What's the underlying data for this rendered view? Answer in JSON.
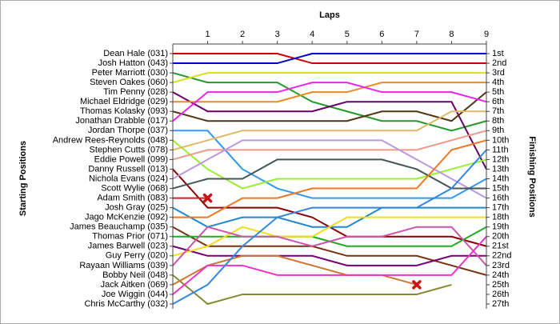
{
  "chart_data": {
    "type": "line",
    "xlabel": "Laps",
    "ylabel_left": "Starting Positions",
    "ylabel_right": "Finishing Positions",
    "x": [
      0,
      1,
      2,
      3,
      4,
      5,
      6,
      7,
      8,
      9
    ],
    "xlim": [
      0,
      9
    ],
    "xticks": [
      1,
      2,
      3,
      4,
      5,
      6,
      7,
      8,
      9
    ],
    "ylim": [
      1,
      27
    ],
    "finishing_labels": [
      "1st",
      "2nd",
      "3rd",
      "4th",
      "5th",
      "6th",
      "7th",
      "8th",
      "9th",
      "10th",
      "11th",
      "12th",
      "13th",
      "14th",
      "15th",
      "16th",
      "17th",
      "18th",
      "19th",
      "20th",
      "21st",
      "22nd",
      "23rd",
      "24th",
      "25th",
      "26th",
      "27th"
    ],
    "series": [
      {
        "name": "Dean Hale (031)",
        "color": "#cc0000",
        "values": [
          1,
          1,
          1,
          1,
          2,
          2,
          2,
          2,
          2,
          2
        ]
      },
      {
        "name": "Josh Hatton (043)",
        "color": "#0000cc",
        "values": [
          2,
          2,
          2,
          2,
          1,
          1,
          1,
          1,
          1,
          1
        ]
      },
      {
        "name": "Peter Marriott (030)",
        "color": "#22992a",
        "values": [
          3,
          4,
          4,
          4,
          6,
          7,
          8,
          8,
          9,
          8
        ]
      },
      {
        "name": "Steven Oakes (060)",
        "color": "#dddd22",
        "values": [
          4,
          3,
          3,
          3,
          3,
          3,
          3,
          3,
          3,
          3
        ]
      },
      {
        "name": "Tim Penny (028)",
        "color": "#660066",
        "values": [
          5,
          7,
          7,
          7,
          7,
          6,
          6,
          6,
          6,
          13
        ]
      },
      {
        "name": "Michael Eldridge (029)",
        "color": "#ee8822",
        "values": [
          6,
          6,
          6,
          6,
          5,
          5,
          4,
          4,
          4,
          4
        ]
      },
      {
        "name": "Thomas Kolasky (093)",
        "color": "#553311",
        "values": [
          7,
          8,
          8,
          8,
          8,
          8,
          7,
          7,
          8,
          5
        ]
      },
      {
        "name": "Jonathan Drabble (017)",
        "color": "#ee22ee",
        "values": [
          8,
          5,
          5,
          5,
          4,
          4,
          5,
          5,
          5,
          6
        ]
      },
      {
        "name": "Jordan Thorpe (037)",
        "color": "#3399ee",
        "values": [
          9,
          9,
          13,
          15,
          16,
          16,
          16,
          16,
          16,
          14
        ]
      },
      {
        "name": "Andrew Rees-Reynolds (048)",
        "color": "#99ee33",
        "values": [
          10,
          13,
          15,
          14,
          14,
          14,
          14,
          14,
          13,
          12
        ]
      },
      {
        "name": "Stephen Cutts (078)",
        "color": "#ddbb66",
        "values": [
          11,
          10,
          9,
          9,
          9,
          9,
          9,
          9,
          7,
          7
        ]
      },
      {
        "name": "Eddie Powell (099)",
        "color": "#ee9988",
        "values": [
          12,
          11,
          11,
          11,
          11,
          11,
          11,
          11,
          10,
          9
        ]
      },
      {
        "name": "Danny Russell (013)",
        "color": "#880000",
        "values": [
          13,
          17,
          17,
          17,
          18,
          20,
          20,
          20,
          20,
          21
        ]
      },
      {
        "name": "Nichola Evans (024)",
        "color": "#bb99dd",
        "values": [
          14,
          12,
          10,
          10,
          10,
          10,
          10,
          12,
          14,
          16
        ]
      },
      {
        "name": "Scott Wylie (068)",
        "color": "#445555",
        "values": [
          15,
          14,
          14,
          12,
          12,
          12,
          12,
          13,
          15,
          15
        ]
      },
      {
        "name": "Adam Smith (083)",
        "color": "#cc2222",
        "retired": true,
        "values": [
          16,
          16,
          null,
          null,
          null,
          null,
          null,
          null,
          null,
          null
        ]
      },
      {
        "name": "Josh Gray (025)",
        "color": "#2288cc",
        "values": [
          17,
          19,
          18,
          18,
          19,
          19,
          17,
          17,
          17,
          17
        ]
      },
      {
        "name": "Jago McKenzie (092)",
        "color": "#ee7722",
        "values": [
          18,
          18,
          16,
          16,
          15,
          15,
          15,
          15,
          11,
          10
        ]
      },
      {
        "name": "James Beauchamp (035)",
        "color": "#773311",
        "values": [
          19,
          21,
          21,
          21,
          21,
          22,
          22,
          22,
          23,
          24
        ]
      },
      {
        "name": "Thomas Prior (071)",
        "color": "#22aa22",
        "values": [
          20,
          20,
          20,
          20,
          20,
          21,
          21,
          21,
          21,
          19
        ]
      },
      {
        "name": "James Barwell (023)",
        "color": "#770077",
        "values": [
          21,
          22,
          22,
          22,
          22,
          23,
          23,
          23,
          22,
          22
        ]
      },
      {
        "name": "Guy Perry (020)",
        "color": "#eedd22",
        "values": [
          22,
          21,
          19,
          20,
          20,
          18,
          18,
          18,
          18,
          18
        ]
      },
      {
        "name": "Rayaan Williams (039)",
        "color": "#cc55aa",
        "values": [
          23,
          19,
          20,
          20,
          21,
          20,
          20,
          19,
          19,
          23
        ]
      },
      {
        "name": "Bobby Neil (048)",
        "color": "#888833",
        "values": [
          24,
          27,
          26,
          26,
          26,
          26,
          26,
          26,
          25,
          null
        ]
      },
      {
        "name": "Jack Aitken (069)",
        "color": "#cc7733",
        "retired": true,
        "values": [
          25,
          23,
          22,
          22,
          23,
          24,
          24,
          25,
          null,
          null
        ]
      },
      {
        "name": "Joe Wiggin (044)",
        "color": "#ee33cc",
        "values": [
          26,
          23,
          23,
          24,
          24,
          24,
          24,
          24,
          24,
          20
        ]
      },
      {
        "name": "Chris McCarthy (032)",
        "color": "#3388dd",
        "values": [
          27,
          25,
          21,
          18,
          17,
          17,
          17,
          17,
          15,
          11
        ]
      }
    ]
  }
}
